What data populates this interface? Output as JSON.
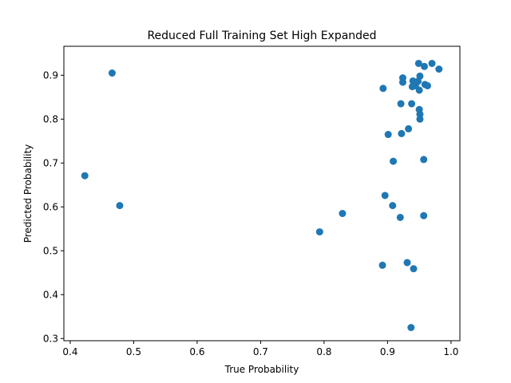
{
  "chart_data": {
    "type": "scatter",
    "title": "Reduced Full Training Set High Expanded",
    "xlabel": "True Probability",
    "ylabel": "Predicted Probability",
    "xlim": [
      0.39,
      1.014
    ],
    "ylim": [
      0.295,
      0.966
    ],
    "xticks": [
      0.4,
      0.5,
      0.6,
      0.7,
      0.8,
      0.9,
      1.0
    ],
    "xtick_labels": [
      "0.4",
      "0.5",
      "0.6",
      "0.7",
      "0.8",
      "0.9",
      "1.0"
    ],
    "yticks": [
      0.3,
      0.4,
      0.5,
      0.6,
      0.7,
      0.8,
      0.9
    ],
    "ytick_labels": [
      "0.3",
      "0.4",
      "0.5",
      "0.6",
      "0.7",
      "0.8",
      "0.9"
    ],
    "grid": false,
    "marker_color": "#1f77b4",
    "points": [
      {
        "x": 0.423,
        "y": 0.671
      },
      {
        "x": 0.466,
        "y": 0.905
      },
      {
        "x": 0.478,
        "y": 0.603
      },
      {
        "x": 0.793,
        "y": 0.543
      },
      {
        "x": 0.829,
        "y": 0.585
      },
      {
        "x": 0.892,
        "y": 0.467
      },
      {
        "x": 0.893,
        "y": 0.87
      },
      {
        "x": 0.896,
        "y": 0.626
      },
      {
        "x": 0.901,
        "y": 0.765
      },
      {
        "x": 0.908,
        "y": 0.603
      },
      {
        "x": 0.909,
        "y": 0.704
      },
      {
        "x": 0.92,
        "y": 0.576
      },
      {
        "x": 0.921,
        "y": 0.835
      },
      {
        "x": 0.922,
        "y": 0.767
      },
      {
        "x": 0.924,
        "y": 0.894
      },
      {
        "x": 0.924,
        "y": 0.884
      },
      {
        "x": 0.931,
        "y": 0.473
      },
      {
        "x": 0.933,
        "y": 0.778
      },
      {
        "x": 0.937,
        "y": 0.325
      },
      {
        "x": 0.938,
        "y": 0.835
      },
      {
        "x": 0.939,
        "y": 0.874
      },
      {
        "x": 0.94,
        "y": 0.887
      },
      {
        "x": 0.941,
        "y": 0.459
      },
      {
        "x": 0.944,
        "y": 0.876
      },
      {
        "x": 0.948,
        "y": 0.886
      },
      {
        "x": 0.949,
        "y": 0.927
      },
      {
        "x": 0.95,
        "y": 0.866
      },
      {
        "x": 0.95,
        "y": 0.822
      },
      {
        "x": 0.951,
        "y": 0.811
      },
      {
        "x": 0.951,
        "y": 0.8
      },
      {
        "x": 0.951,
        "y": 0.898
      },
      {
        "x": 0.957,
        "y": 0.708
      },
      {
        "x": 0.957,
        "y": 0.58
      },
      {
        "x": 0.958,
        "y": 0.92
      },
      {
        "x": 0.959,
        "y": 0.879
      },
      {
        "x": 0.963,
        "y": 0.876
      },
      {
        "x": 0.97,
        "y": 0.927
      },
      {
        "x": 0.981,
        "y": 0.914
      }
    ]
  }
}
